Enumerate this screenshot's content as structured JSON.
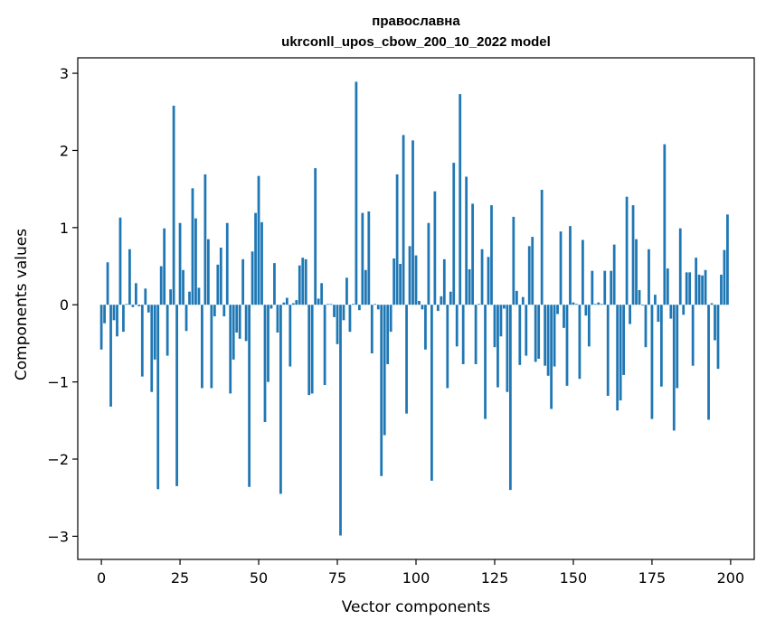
{
  "chart_data": {
    "type": "bar",
    "title": "православна",
    "subtitle": "ukrconll_upos_cbow_200_10_2022 model",
    "xlabel": "Vector components",
    "ylabel": "Components values",
    "xlim": [
      -7.5,
      207.5
    ],
    "ylim": [
      -3.3,
      3.2
    ],
    "xticks": [
      0,
      25,
      50,
      75,
      100,
      125,
      150,
      175,
      200
    ],
    "yticks": [
      -3,
      -2,
      -1,
      0,
      1,
      2,
      3
    ],
    "xtick_labels": [
      "0",
      "25",
      "50",
      "75",
      "100",
      "125",
      "150",
      "175",
      "200"
    ],
    "ytick_labels": [
      "−3",
      "−2",
      "−1",
      "0",
      "1",
      "2",
      "3"
    ],
    "grid": false,
    "bar_color": "#1f77b4",
    "x": [
      0,
      1,
      2,
      3,
      4,
      5,
      6,
      7,
      8,
      9,
      10,
      11,
      12,
      13,
      14,
      15,
      16,
      17,
      18,
      19,
      20,
      21,
      22,
      23,
      24,
      25,
      26,
      27,
      28,
      29,
      30,
      31,
      32,
      33,
      34,
      35,
      36,
      37,
      38,
      39,
      40,
      41,
      42,
      43,
      44,
      45,
      46,
      47,
      48,
      49,
      50,
      51,
      52,
      53,
      54,
      55,
      56,
      57,
      58,
      59,
      60,
      61,
      62,
      63,
      64,
      65,
      66,
      67,
      68,
      69,
      70,
      71,
      72,
      73,
      74,
      75,
      76,
      77,
      78,
      79,
      80,
      81,
      82,
      83,
      84,
      85,
      86,
      87,
      88,
      89,
      90,
      91,
      92,
      93,
      94,
      95,
      96,
      97,
      98,
      99,
      100,
      101,
      102,
      103,
      104,
      105,
      106,
      107,
      108,
      109,
      110,
      111,
      112,
      113,
      114,
      115,
      116,
      117,
      118,
      119,
      120,
      121,
      122,
      123,
      124,
      125,
      126,
      127,
      128,
      129,
      130,
      131,
      132,
      133,
      134,
      135,
      136,
      137,
      138,
      139,
      140,
      141,
      142,
      143,
      144,
      145,
      146,
      147,
      148,
      149,
      150,
      151,
      152,
      153,
      154,
      155,
      156,
      157,
      158,
      159,
      160,
      161,
      162,
      163,
      164,
      165,
      166,
      167,
      168,
      169,
      170,
      171,
      172,
      173,
      174,
      175,
      176,
      177,
      178,
      179,
      180,
      181,
      182,
      183,
      184,
      185,
      186,
      187,
      188,
      189,
      190,
      191,
      192,
      193,
      194,
      195,
      196,
      197,
      198,
      199
    ],
    "values": [
      -0.58,
      -0.24,
      0.55,
      -1.32,
      -0.2,
      -0.41,
      1.13,
      -0.35,
      0.01,
      0.72,
      -0.03,
      0.28,
      -0.02,
      -0.93,
      0.21,
      -0.1,
      -1.13,
      -0.71,
      -2.39,
      0.5,
      0.99,
      -0.66,
      0.2,
      2.58,
      -2.35,
      1.06,
      0.45,
      -0.34,
      0.17,
      1.51,
      1.12,
      0.22,
      -1.08,
      1.69,
      0.85,
      -1.08,
      -0.15,
      0.52,
      0.74,
      -0.15,
      1.06,
      -1.15,
      -0.71,
      -0.36,
      -0.44,
      0.59,
      -0.47,
      -2.36,
      0.69,
      1.19,
      1.67,
      1.07,
      -1.52,
      -1.0,
      -0.05,
      0.54,
      -0.36,
      -2.45,
      0.03,
      0.09,
      -0.8,
      0.02,
      0.06,
      0.51,
      0.61,
      0.59,
      -1.17,
      -1.15,
      1.77,
      0.08,
      0.28,
      -1.04,
      0.01,
      0.01,
      -0.16,
      -0.51,
      -2.99,
      -0.2,
      0.35,
      -0.35,
      0.01,
      2.89,
      -0.07,
      1.19,
      0.45,
      1.21,
      -0.63,
      0.01,
      -0.06,
      -2.22,
      -1.69,
      -0.77,
      -0.35,
      0.6,
      1.69,
      0.53,
      2.2,
      -1.41,
      0.76,
      2.13,
      0.64,
      0.05,
      -0.06,
      -0.58,
      1.06,
      -2.28,
      1.47,
      -0.08,
      0.11,
      0.59,
      -1.08,
      0.17,
      1.84,
      -0.54,
      2.73,
      -0.77,
      1.66,
      0.46,
      1.31,
      -0.77,
      0.01,
      0.72,
      -1.48,
      0.62,
      1.29,
      -0.55,
      -1.07,
      -0.41,
      -0.05,
      -1.13,
      -2.4,
      1.14,
      0.18,
      -0.78,
      0.1,
      -0.66,
      0.76,
      0.88,
      -0.74,
      -0.7,
      1.49,
      -0.79,
      -0.92,
      -1.35,
      -0.8,
      -0.12,
      0.95,
      -0.3,
      -1.05,
      1.02,
      0.03,
      0.01,
      -0.96,
      0.84,
      -0.14,
      -0.54,
      0.44,
      0.01,
      0.03,
      0.01,
      0.44,
      -1.18,
      0.44,
      0.78,
      -1.37,
      -1.24,
      -0.91,
      1.4,
      -0.25,
      1.29,
      0.85,
      0.19,
      -0.01,
      -0.55,
      0.72,
      -1.48,
      0.13,
      -0.22,
      -1.06,
      2.08,
      0.47,
      -0.18,
      -1.63,
      -1.08,
      0.99,
      -0.13,
      0.42,
      0.42,
      -0.79,
      0.61,
      0.39,
      0.38,
      0.45,
      -1.49,
      0.02,
      -0.46,
      -0.83,
      0.39,
      0.71,
      1.17
    ]
  }
}
